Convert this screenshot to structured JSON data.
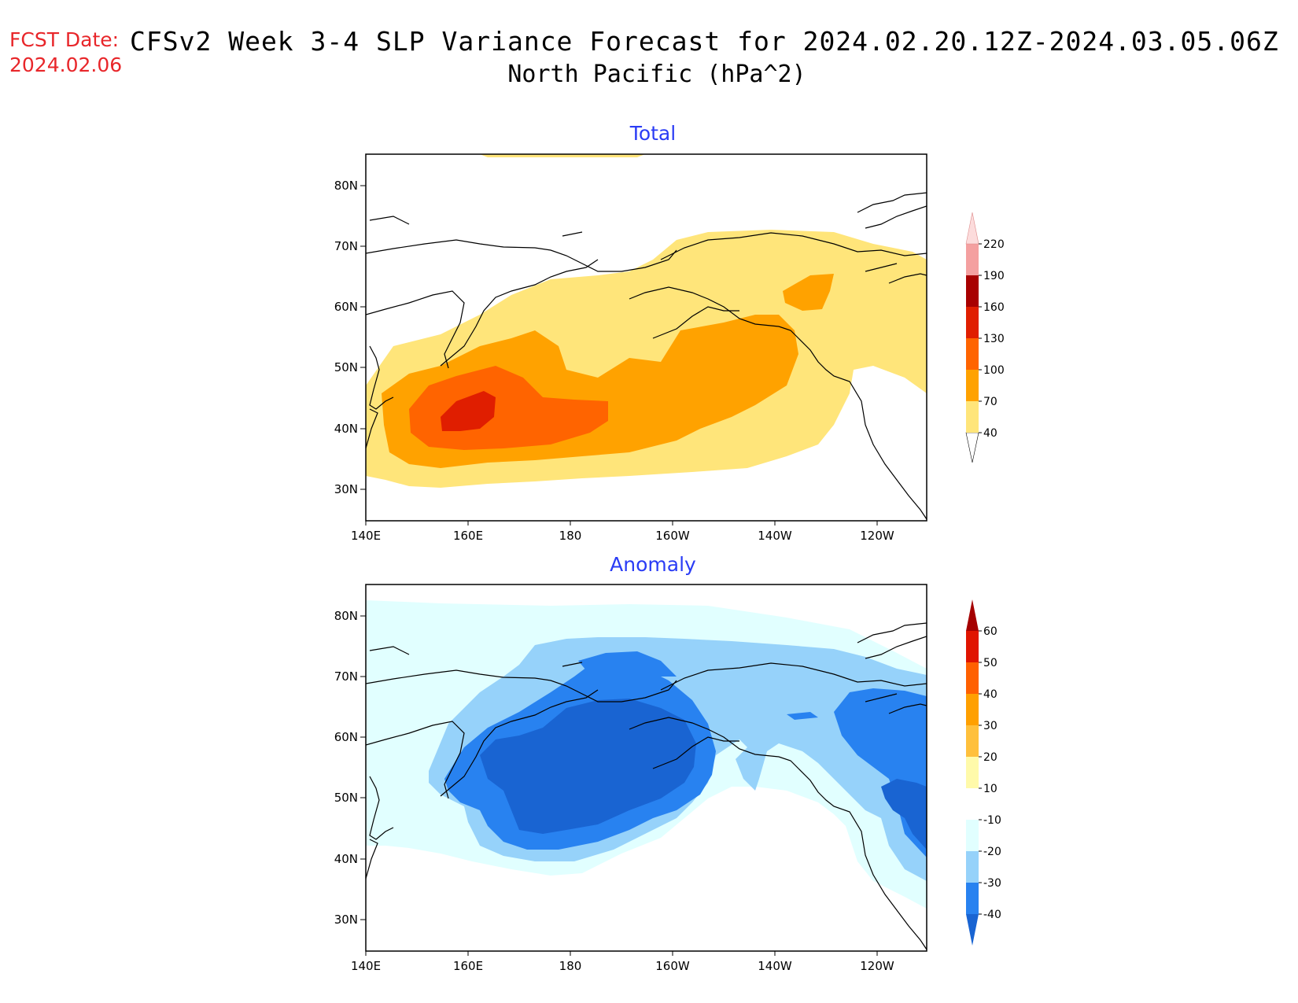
{
  "header": {
    "fcst_label": "FCST Date:",
    "fcst_date": "2024.02.06",
    "title": "CFSv2 Week 3-4 SLP Variance Forecast for 2024.02.20.12Z-2024.03.05.06Z",
    "subtitle": "North Pacific (hPa^2)"
  },
  "axes": {
    "lat_labels": [
      "80N",
      "70N",
      "60N",
      "50N",
      "40N",
      "30N"
    ],
    "lon_labels": [
      "140E",
      "160E",
      "180",
      "160W",
      "140W",
      "120W"
    ]
  },
  "panels": [
    {
      "title": "Total",
      "colorbar": {
        "levels": [
          "40",
          "70",
          "100",
          "130",
          "160",
          "190",
          "220"
        ],
        "colors": [
          "#ffe57a",
          "#ffa200",
          "#ff6400",
          "#e01e00",
          "#a80000",
          "#f4a0a0",
          "#fcdcdc"
        ]
      }
    },
    {
      "title": "Anomaly",
      "colorbar": {
        "levels": [
          "-40",
          "-30",
          "-20",
          "-10",
          "10",
          "20",
          "30",
          "40",
          "50",
          "60"
        ],
        "colors": [
          "#1964d2",
          "#2882f0",
          "#96d2fa",
          "#e1ffff",
          "#ffffff",
          "#fffaaa",
          "#ffc03c",
          "#ffa000",
          "#ff6000",
          "#e01400",
          "#a50000"
        ]
      }
    }
  ]
}
